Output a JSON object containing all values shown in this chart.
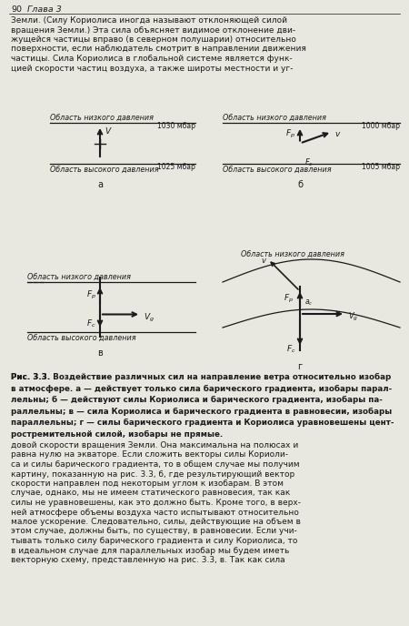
{
  "page_header": "90    Глава 3",
  "top_text_lines": [
    "Земли. (Силу Кориолиса иногда называют отклоняющей силой",
    "вращения Земли.) Эта сила объясняет видимое отклонение дви-",
    "жущейся частицы вправо (в северном полушарии) относительно",
    "поверхности, если наблюдатель смотрит в направлении движения",
    "частицы. Сила Кориолиса в глобальной системе является функ-",
    "цией скорости частиц воздуха, а также широты местности и уг-"
  ],
  "caption_lines": [
    "Рис. 3.3. Воздействие различных сил на направление ветра относительно изобар",
    "в атмосфере. а — действует только сила барического градиента, изобары парал-",
    "лельны; б — действуют силы Кориолиса и барического градиента, изобары па-",
    "раллельны; в — сила Кориолиса и барического градиента в равновесии, изобары",
    "параллельны; г — силы барического градиента и Кориолиса уравновешены цент-",
    "ростремительной силой, изобары не прямые."
  ],
  "bottom_text_lines": [
    "довой скорости вращения Земли. Она максимальна на полюсах и",
    "равна нулю на экваторе. Если сложить векторы силы Кориоли-",
    "са и силы барического градиента, то в общем случае мы получим",
    "картину, показанную на рис. 3.3, б, где результирующий вектор",
    "скорости направлен под некоторым углом к изобарам. В этом",
    "случае, однако, мы не имеем статического равновесия, так как",
    "силы не уравновешены, как это должно быть. Кроме того, в верх-",
    "ней атмосфере объемы воздуха часто испытывают относительно",
    "малое ускорение. Следовательно, силы, действующие на объем в",
    "этом случае, должны быть, по существу, в равновесии. Если учи-",
    "тывать только силу барического градиента и силу Кориолиса, то",
    "в идеальном случае для параллельных изобар мы будем иметь",
    "векторную схему, представленную на рис. 3.3, в. Так как сила"
  ],
  "bg_color": "#e8e8e0",
  "text_color": "#1a1a1a",
  "line_color": "#1a1a1a"
}
